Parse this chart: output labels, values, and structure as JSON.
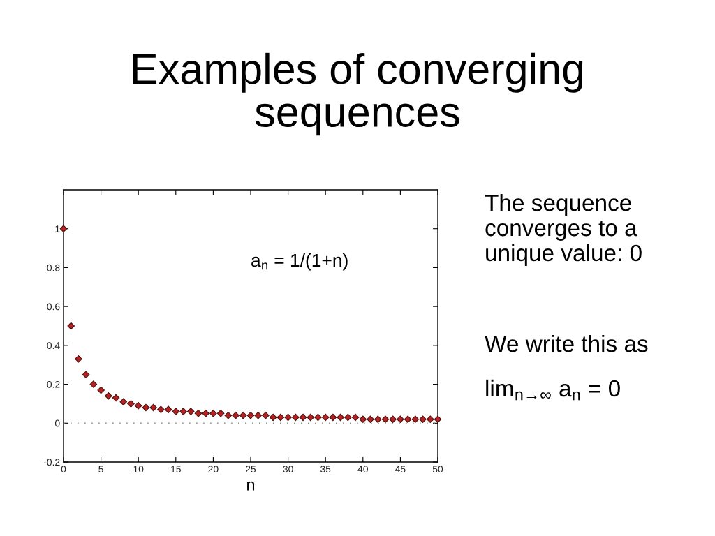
{
  "chart_data": {
    "type": "scatter",
    "title": "Examples of converging sequences",
    "xlabel": "n",
    "x": [
      0,
      1,
      2,
      3,
      4,
      5,
      6,
      7,
      8,
      9,
      10,
      11,
      12,
      13,
      14,
      15,
      16,
      17,
      18,
      19,
      20,
      21,
      22,
      23,
      24,
      25,
      26,
      27,
      28,
      29,
      30,
      31,
      32,
      33,
      34,
      35,
      36,
      37,
      38,
      39,
      40,
      41,
      42,
      43,
      44,
      45,
      46,
      47,
      48,
      49,
      50
    ],
    "series": [
      {
        "color": "#b22222",
        "values": [
          1,
          0.5,
          0.33,
          0.25,
          0.2,
          0.17,
          0.14,
          0.13,
          0.11,
          0.1,
          0.09,
          0.08,
          0.08,
          0.07,
          0.07,
          0.06,
          0.06,
          0.06,
          0.05,
          0.05,
          0.05,
          0.05,
          0.04,
          0.04,
          0.04,
          0.04,
          0.04,
          0.04,
          0.03,
          0.03,
          0.03,
          0.03,
          0.03,
          0.03,
          0.03,
          0.03,
          0.03,
          0.03,
          0.03,
          0.03,
          0.02,
          0.02,
          0.02,
          0.02,
          0.02,
          0.02,
          0.02,
          0.02,
          0.02,
          0.02,
          0.02
        ]
      }
    ],
    "marker": "diamond",
    "xlim": [
      0,
      50
    ],
    "ylim": [
      -0.2,
      1.2
    ],
    "xticks": [
      0,
      5,
      10,
      15,
      20,
      25,
      30,
      35,
      40,
      45,
      50
    ],
    "yticks": [
      -0.2,
      0,
      0.2,
      0.4,
      0.6,
      0.8,
      1
    ],
    "ref_lines": [
      {
        "axis": "y",
        "value": 0,
        "color": "#8c9a8c",
        "line_style": "dotted"
      }
    ],
    "annotations": [
      "a$_{n}$ = 1/(1+n)",
      "The sequence converges to a unique value: 0",
      "We write this as",
      "lim$_{n→∞}$ a$_{n}$ = 0"
    ]
  }
}
